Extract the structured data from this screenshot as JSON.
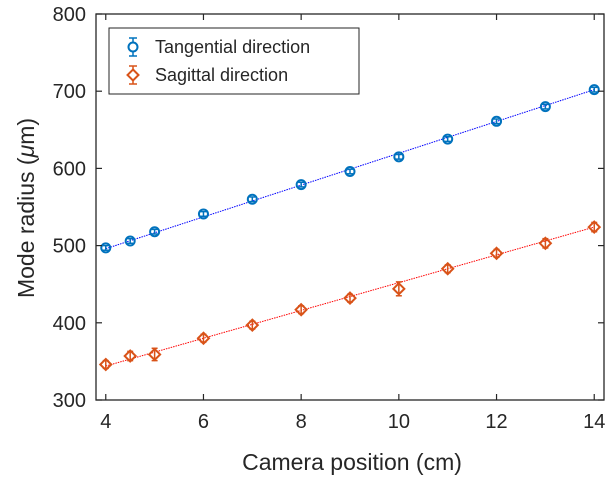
{
  "chart_data": {
    "type": "scatter",
    "xlabel": "Camera position (cm)",
    "ylabel_main": "Mode radius (",
    "ylabel_mu": "μ",
    "ylabel_end": "m)",
    "xlim": [
      3.8,
      14.2
    ],
    "ylim": [
      300,
      800
    ],
    "xticks": [
      4,
      6,
      8,
      10,
      12,
      14
    ],
    "yticks": [
      300,
      400,
      500,
      600,
      700,
      800
    ],
    "grid": false,
    "legend_position": "top-left",
    "series": [
      {
        "name": "Tangential direction",
        "color": "#0072BD",
        "fit_color": "#0000FF",
        "marker": "circle",
        "x": [
          4,
          4.5,
          5,
          6,
          7,
          8,
          9,
          10,
          11,
          12,
          13,
          14
        ],
        "y": [
          497,
          506,
          518,
          541,
          560,
          579,
          596,
          615,
          638,
          661,
          680,
          702
        ],
        "err": [
          3,
          3,
          3,
          3,
          3,
          3,
          3,
          3,
          3,
          3,
          3,
          3
        ],
        "fit": [
          496,
          702
        ]
      },
      {
        "name": "Sagittal direction",
        "color": "#D95319",
        "fit_color": "#FF0000",
        "marker": "diamond",
        "x": [
          4,
          4.5,
          5,
          6,
          7,
          8,
          9,
          10,
          11,
          12,
          13,
          14
        ],
        "y": [
          346,
          357,
          359,
          380,
          397,
          417,
          432,
          444,
          470,
          490,
          503,
          524
        ],
        "err": [
          5,
          6,
          8,
          5,
          5,
          5,
          5,
          9,
          5,
          5,
          6,
          6
        ],
        "fit": [
          344,
          524
        ]
      }
    ]
  }
}
